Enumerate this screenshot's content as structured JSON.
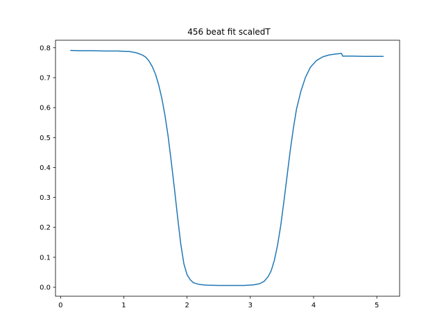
{
  "chart_data": {
    "type": "line",
    "title": "456 beat fit scaledT",
    "xlabel": "",
    "ylabel": "",
    "xlim": [
      -0.08,
      5.36
    ],
    "ylim": [
      -0.03,
      0.825
    ],
    "grid": false,
    "xticks": [
      0,
      1,
      2,
      3,
      4,
      5
    ],
    "xtick_labels": [
      "0",
      "1",
      "2",
      "3",
      "4",
      "5"
    ],
    "yticks": [
      0.0,
      0.1,
      0.2,
      0.3,
      0.4,
      0.5,
      0.6,
      0.7,
      0.8
    ],
    "ytick_labels": [
      "0.0",
      "0.1",
      "0.2",
      "0.3",
      "0.4",
      "0.5",
      "0.6",
      "0.7",
      "0.8"
    ],
    "series": [
      {
        "color": "#1f77b4",
        "points": [
          [
            0.16,
            0.791
          ],
          [
            0.3,
            0.79
          ],
          [
            0.5,
            0.79
          ],
          [
            0.7,
            0.789
          ],
          [
            0.9,
            0.789
          ],
          [
            1.0,
            0.788
          ],
          [
            1.1,
            0.787
          ],
          [
            1.2,
            0.783
          ],
          [
            1.3,
            0.775
          ],
          [
            1.35,
            0.768
          ],
          [
            1.4,
            0.755
          ],
          [
            1.45,
            0.737
          ],
          [
            1.5,
            0.712
          ],
          [
            1.55,
            0.677
          ],
          [
            1.6,
            0.632
          ],
          [
            1.65,
            0.575
          ],
          [
            1.7,
            0.505
          ],
          [
            1.75,
            0.42
          ],
          [
            1.8,
            0.33
          ],
          [
            1.85,
            0.235
          ],
          [
            1.9,
            0.145
          ],
          [
            1.95,
            0.078
          ],
          [
            2.0,
            0.042
          ],
          [
            2.05,
            0.025
          ],
          [
            2.1,
            0.015
          ],
          [
            2.2,
            0.009
          ],
          [
            2.3,
            0.007
          ],
          [
            2.5,
            0.006
          ],
          [
            2.7,
            0.006
          ],
          [
            2.9,
            0.006
          ],
          [
            3.05,
            0.008
          ],
          [
            3.15,
            0.012
          ],
          [
            3.22,
            0.02
          ],
          [
            3.28,
            0.035
          ],
          [
            3.33,
            0.055
          ],
          [
            3.38,
            0.09
          ],
          [
            3.43,
            0.14
          ],
          [
            3.48,
            0.205
          ],
          [
            3.53,
            0.285
          ],
          [
            3.58,
            0.37
          ],
          [
            3.63,
            0.455
          ],
          [
            3.68,
            0.53
          ],
          [
            3.73,
            0.595
          ],
          [
            3.8,
            0.655
          ],
          [
            3.87,
            0.7
          ],
          [
            3.95,
            0.735
          ],
          [
            4.05,
            0.758
          ],
          [
            4.15,
            0.77
          ],
          [
            4.25,
            0.776
          ],
          [
            4.35,
            0.779
          ],
          [
            4.44,
            0.781
          ],
          [
            4.46,
            0.772
          ],
          [
            4.6,
            0.772
          ],
          [
            4.8,
            0.771
          ],
          [
            5.0,
            0.771
          ],
          [
            5.1,
            0.771
          ]
        ]
      }
    ]
  }
}
